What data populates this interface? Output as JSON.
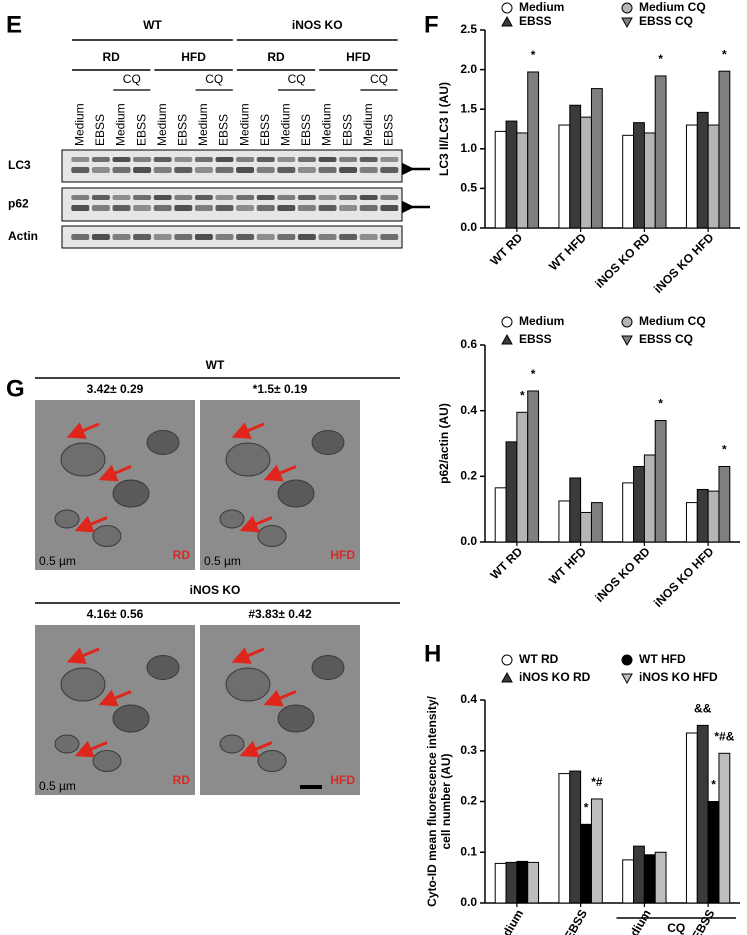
{
  "panel_labels": [
    "E",
    "F",
    "G",
    "H"
  ],
  "blot": {
    "genotypes": [
      "WT",
      "iNOS KO"
    ],
    "diets": [
      "RD",
      "HFD",
      "RD",
      "HFD"
    ],
    "cq": [
      "CQ",
      "CQ",
      "CQ",
      "CQ"
    ],
    "lanes": [
      "Medium",
      "EBSS",
      "Medium",
      "EBSS",
      "Medium",
      "EBSS",
      "Medium",
      "EBSS",
      "Medium",
      "EBSS",
      "Medium",
      "EBSS",
      "Medium",
      "EBSS",
      "Medium",
      "EBSS"
    ],
    "rows": [
      "LC3",
      "p62",
      "Actin"
    ]
  },
  "em": {
    "sections": [
      {
        "title": "WT",
        "scores": [
          "3.42± 0.29",
          "*1.5± 0.19"
        ],
        "diets": [
          "RD",
          "HFD"
        ],
        "scales": [
          "0.5 µm",
          "0.5 µm"
        ]
      },
      {
        "title": "iNOS KO",
        "scores": [
          "4.16± 0.56",
          "#3.83± 0.42"
        ],
        "diets": [
          "RD",
          "HFD"
        ],
        "scales": [
          "0.5 µm",
          null
        ]
      }
    ]
  },
  "chart_data": [
    {
      "type": "bar",
      "ylabel": [
        "LC3 II/LC3 I (AU)"
      ],
      "categories": [
        "WT RD",
        "WT HFD",
        "iNOS KO RD",
        "iNOS KO HFD"
      ],
      "series": [
        {
          "name": "Medium",
          "color": "#ffffff",
          "marker": "circle",
          "values": [
            1.22,
            1.3,
            1.17,
            1.3
          ],
          "annotations": [
            null,
            null,
            null,
            null
          ]
        },
        {
          "name": "EBSS",
          "color": "#3a3a3a",
          "marker": "triangle",
          "values": [
            1.35,
            1.55,
            1.33,
            1.46
          ],
          "annotations": [
            null,
            null,
            null,
            null
          ]
        },
        {
          "name": "Medium CQ",
          "color": "#b5b5b5",
          "marker": "circle",
          "values": [
            1.2,
            1.4,
            1.2,
            1.3
          ],
          "annotations": [
            null,
            null,
            null,
            null
          ]
        },
        {
          "name": "EBSS CQ",
          "color": "#7f7f7f",
          "marker": "triangle-down",
          "values": [
            1.97,
            1.76,
            1.92,
            1.98
          ],
          "annotations": [
            "*",
            null,
            "*",
            "*"
          ]
        }
      ],
      "ylim": [
        0,
        2.5
      ],
      "yticks": [
        {
          "value": 0,
          "label": "0.0"
        },
        0.5,
        {
          "value": 1,
          "label": "1.0"
        },
        1.5,
        {
          "value": 2,
          "label": "2.0"
        },
        2.5
      ]
    },
    {
      "type": "bar",
      "ylabel": [
        "p62/actin (AU)"
      ],
      "categories": [
        "WT RD",
        "WT HFD",
        "iNOS KO RD",
        "iNOS KO HFD"
      ],
      "series": [
        {
          "name": "Medium",
          "color": "#ffffff",
          "marker": "circle",
          "values": [
            0.165,
            0.125,
            0.18,
            0.12
          ],
          "annotations": [
            null,
            null,
            null,
            null
          ]
        },
        {
          "name": "EBSS",
          "color": "#3a3a3a",
          "marker": "triangle",
          "values": [
            0.305,
            0.195,
            0.23,
            0.16
          ],
          "annotations": [
            null,
            null,
            null,
            null
          ]
        },
        {
          "name": "Medium CQ",
          "color": "#b5b5b5",
          "marker": "circle",
          "values": [
            0.395,
            0.09,
            0.265,
            0.155
          ],
          "annotations": [
            "*",
            null,
            null,
            null
          ]
        },
        {
          "name": "EBSS CQ",
          "color": "#7f7f7f",
          "marker": "triangle-down",
          "values": [
            0.46,
            0.12,
            0.37,
            0.23
          ],
          "annotations": [
            "*",
            null,
            "*",
            "*"
          ]
        }
      ],
      "ylim": [
        0,
        0.6
      ],
      "yticks": [
        {
          "value": 0,
          "label": "0.0"
        },
        0.2,
        0.4,
        0.6
      ]
    },
    {
      "type": "bar",
      "ylabel": [
        "Cyto-ID mean fluorescence intensity/",
        "cell number (AU)"
      ],
      "categories": [
        "Medium",
        "EBSS",
        "Medium",
        "EBSS"
      ],
      "group": {
        "label": "CQ",
        "span": [
          2,
          3
        ]
      },
      "series": [
        {
          "name": "WT RD",
          "color": "#ffffff",
          "marker": "circle",
          "values": [
            0.078,
            0.255,
            0.085,
            0.335
          ],
          "annotations": [
            null,
            null,
            null,
            null
          ]
        },
        {
          "name": "iNOS KO RD",
          "color": "#3a3a3a",
          "marker": "triangle",
          "values": [
            0.08,
            0.26,
            0.112,
            0.35
          ],
          "annotations": [
            null,
            null,
            null,
            "&&"
          ]
        },
        {
          "name": "WT HFD",
          "color": "#000000",
          "marker": "circle",
          "values": [
            0.082,
            0.155,
            0.095,
            0.2
          ],
          "annotations": [
            null,
            "*",
            null,
            "*"
          ]
        },
        {
          "name": "iNOS KO HFD",
          "color": "#bdbdbd",
          "marker": "triangle-down",
          "values": [
            0.08,
            0.205,
            0.1,
            0.295
          ],
          "annotations": [
            null,
            "*#",
            null,
            "*#&"
          ]
        }
      ],
      "ylim": [
        0,
        0.4
      ],
      "yticks": [
        {
          "value": 0,
          "label": "0.0"
        },
        0.1,
        0.2,
        0.3,
        0.4
      ]
    }
  ]
}
